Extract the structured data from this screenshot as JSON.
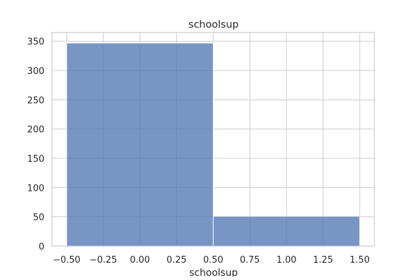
{
  "chart_data": {
    "type": "bar",
    "title": "schoolsup",
    "xlabel": "schoolsup",
    "ylabel": "",
    "bins": [
      {
        "x_start": -0.5,
        "x_end": 0.5,
        "value": 347
      },
      {
        "x_start": 0.5,
        "x_end": 1.5,
        "value": 51
      }
    ],
    "xlim": [
      -0.6,
      1.6
    ],
    "ylim": [
      0,
      365
    ],
    "x_ticks": [
      -0.5,
      -0.25,
      0.0,
      0.25,
      0.5,
      0.75,
      1.0,
      1.25,
      1.5
    ],
    "x_tick_labels": [
      "−0.50",
      "−0.25",
      "0.00",
      "0.25",
      "0.50",
      "0.75",
      "1.00",
      "1.25",
      "1.50"
    ],
    "y_ticks": [
      0,
      50,
      100,
      150,
      200,
      250,
      300,
      350
    ],
    "y_tick_labels": [
      "0",
      "50",
      "100",
      "150",
      "200",
      "250",
      "300",
      "350"
    ],
    "grid": true,
    "bar_color": "#4c72b0",
    "grid_color": "#cccccc",
    "background": "#ffffff"
  }
}
